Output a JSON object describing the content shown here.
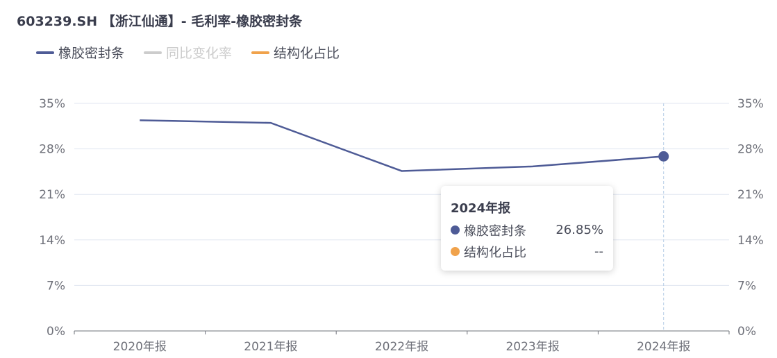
{
  "title": "603239.SH 【浙江仙通】- 毛利率-橡胶密封条",
  "legend": [
    {
      "label": "橡胶密封条",
      "color": "#4e5b96",
      "active": true
    },
    {
      "label": "同比变化率",
      "color": "#cccccc",
      "active": false
    },
    {
      "label": "结构化占比",
      "color": "#f0a24b",
      "active": true
    }
  ],
  "tooltip": {
    "header": "2024年报",
    "rows": [
      {
        "label": "橡胶密封条",
        "value": "26.85%",
        "color": "#4e5b96"
      },
      {
        "label": "结构化占比",
        "value": "--",
        "color": "#f0a24b"
      }
    ]
  },
  "chart_data": {
    "type": "line",
    "title": "603239.SH 【浙江仙通】- 毛利率-橡胶密封条",
    "categories": [
      "2020年报",
      "2021年报",
      "2022年报",
      "2023年报",
      "2024年报"
    ],
    "series": [
      {
        "name": "橡胶密封条",
        "values": [
          32.4,
          32.0,
          24.6,
          25.3,
          26.85
        ],
        "color": "#4e5b96"
      }
    ],
    "ylim": [
      0,
      35
    ],
    "yticks": [
      "0%",
      "7%",
      "14%",
      "21%",
      "28%",
      "35%"
    ],
    "ytick_values": [
      0,
      7,
      14,
      21,
      28,
      35
    ],
    "grid": true,
    "legend_position": "top-left",
    "highlighted_category": "2024年报"
  }
}
